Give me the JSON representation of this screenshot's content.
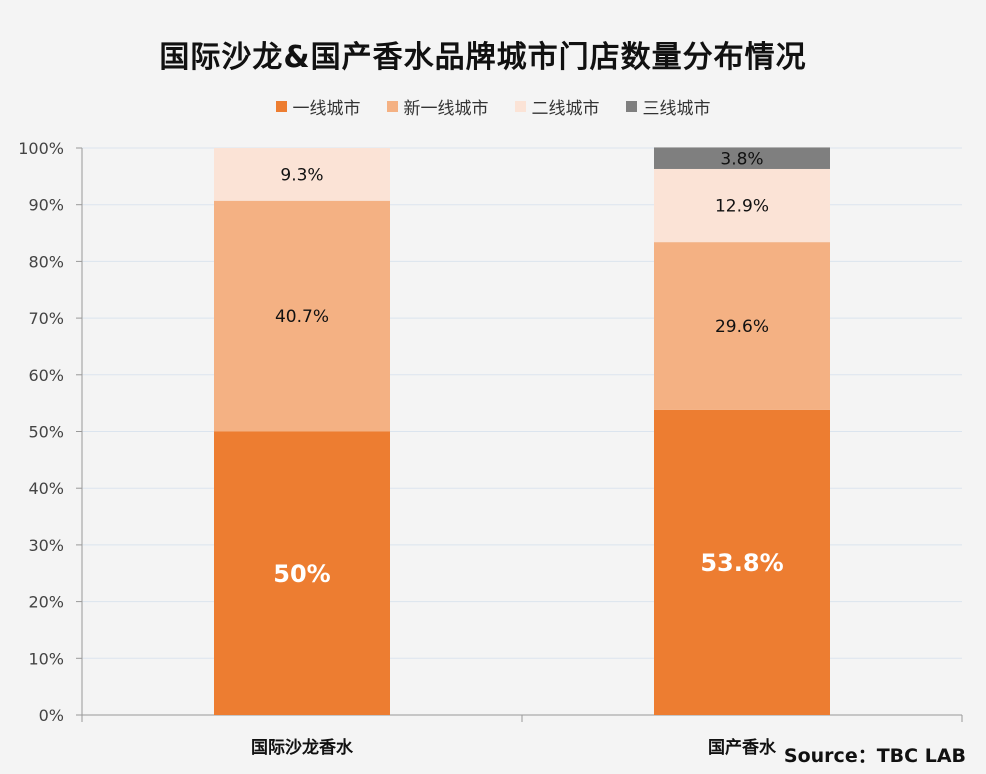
{
  "chart_data": {
    "type": "bar",
    "stacked": true,
    "title": "国际沙龙&国产香水品牌城市门店数量分布情况",
    "categories": [
      "国际沙龙香水",
      "国产香水"
    ],
    "series": [
      {
        "name": "一线城市",
        "color": "#ed7d31",
        "values": [
          50,
          53.8
        ],
        "labels": [
          "50%",
          "53.8%"
        ]
      },
      {
        "name": "新一线城市",
        "color": "#f4b183",
        "values": [
          40.7,
          29.6
        ],
        "labels": [
          "40.7%",
          "29.6%"
        ]
      },
      {
        "name": "二线城市",
        "color": "#fbe3d6",
        "values": [
          9.3,
          12.9
        ],
        "labels": [
          "9.3%",
          "12.9%"
        ]
      },
      {
        "name": "三线城市",
        "color": "#7f7f7f",
        "values": [
          0,
          3.8
        ],
        "labels": [
          "",
          "3.8%"
        ]
      }
    ],
    "y_ticks": [
      "0%",
      "10%",
      "20%",
      "30%",
      "40%",
      "50%",
      "60%",
      "70%",
      "80%",
      "90%",
      "100%"
    ],
    "ylim": [
      0,
      100
    ],
    "grid": true,
    "legend": "top-center"
  },
  "source": "Source：TBC LAB"
}
